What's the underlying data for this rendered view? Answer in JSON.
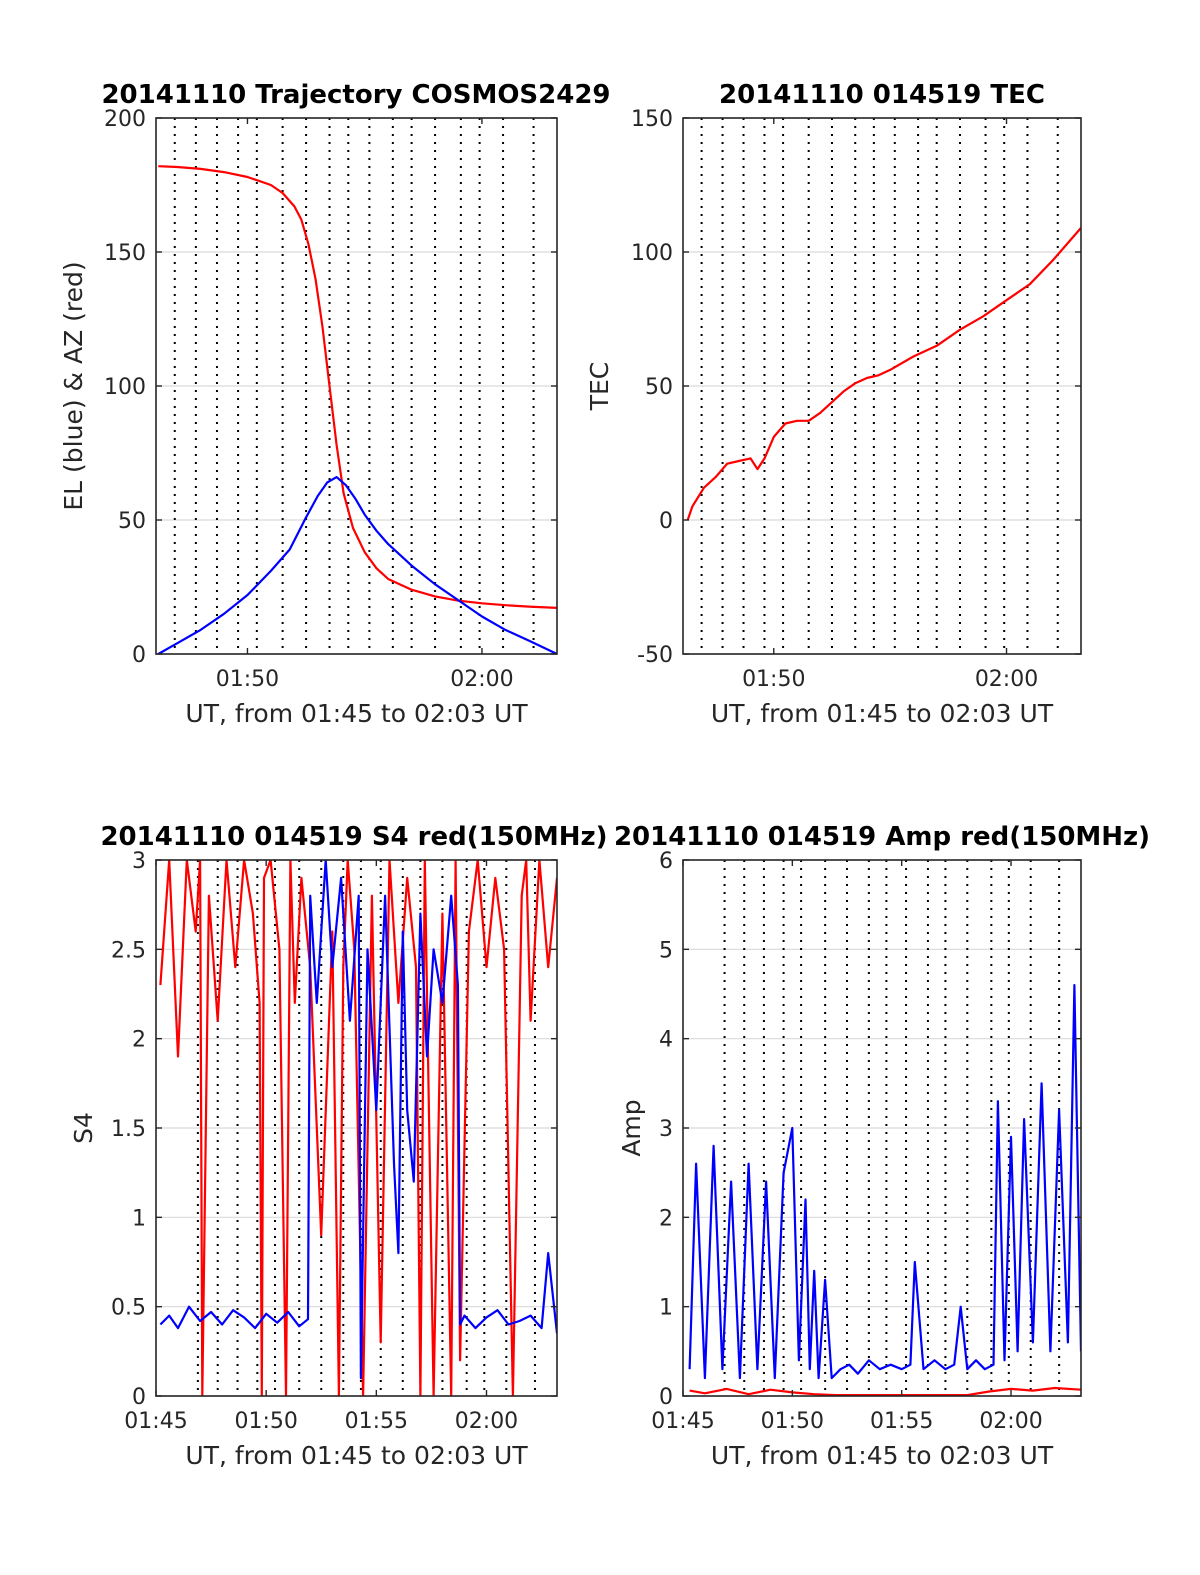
{
  "colors": {
    "red": "#ff0000",
    "blue": "#0000ff",
    "grid": "#d9d9d9",
    "vline": "#000000",
    "axis": "#262626"
  },
  "chart_data": [
    {
      "id": "trajectory",
      "type": "line",
      "title": "20141110 Trajectory COSMOS2429",
      "xlabel": "UT, from 01:45 to 02:03 UT",
      "ylabel": "EL (blue) & AZ (red)",
      "xlim_minutes": [
        106.1,
        123.2
      ],
      "ylim": [
        0,
        200
      ],
      "yticks": [
        0,
        50,
        100,
        150,
        200
      ],
      "ytick_labels": [
        "0",
        "50",
        "100",
        "150",
        "200"
      ],
      "xticks_minutes": [
        110,
        120
      ],
      "xtick_labels": [
        "01:50",
        "02:00"
      ],
      "grid": "horizontal",
      "series": [
        {
          "color": "red",
          "x": [
            106.2,
            107,
            108,
            109,
            110,
            111,
            111.5,
            112,
            112.3,
            112.6,
            112.9,
            113.2,
            113.5,
            113.8,
            114.1,
            114.5,
            115,
            115.5,
            116,
            117,
            118,
            119,
            120,
            121,
            122,
            123.2
          ],
          "y": [
            182,
            181.7,
            181,
            179.8,
            178,
            175,
            172,
            167,
            162,
            153,
            140,
            122,
            100,
            78,
            60,
            47,
            38,
            32,
            28,
            24,
            21.5,
            19.9,
            18.9,
            18.2,
            17.7,
            17.2
          ]
        },
        {
          "color": "blue",
          "x": [
            106.2,
            107,
            108,
            109,
            110,
            111,
            111.8,
            112.5,
            113,
            113.4,
            113.8,
            114.2,
            114.6,
            115,
            115.5,
            116,
            117,
            118,
            119,
            120,
            121,
            122,
            123.2
          ],
          "y": [
            0,
            4,
            9,
            15,
            22,
            31,
            39,
            51,
            59,
            64,
            66,
            63,
            58,
            52,
            46,
            41,
            33,
            26,
            20,
            14,
            9,
            5,
            0
          ]
        }
      ]
    },
    {
      "id": "tec",
      "type": "line",
      "title": "20141110 014519 TEC",
      "xlabel": "UT, from 01:45 to 02:03 UT",
      "ylabel": "TEC",
      "xlim_minutes": [
        106.1,
        123.2
      ],
      "ylim": [
        -50,
        150
      ],
      "yticks": [
        -50,
        0,
        50,
        100,
        150
      ],
      "ytick_labels": [
        "-50",
        "0",
        "50",
        "100",
        "150"
      ],
      "xticks_minutes": [
        110,
        120
      ],
      "xtick_labels": [
        "01:50",
        "02:00"
      ],
      "grid": "horizontal",
      "series": [
        {
          "color": "red",
          "x": [
            106.3,
            106.5,
            107,
            107.5,
            108,
            108.5,
            109,
            109.3,
            109.6,
            110,
            110.5,
            111,
            111.5,
            112,
            112.5,
            113,
            113.5,
            114,
            114.5,
            115,
            116,
            117,
            118,
            119,
            120,
            121,
            122,
            123.2
          ],
          "y": [
            0,
            5,
            12,
            16,
            21,
            22,
            23,
            19,
            23,
            31,
            36,
            37,
            37,
            40,
            44,
            48,
            51,
            53,
            54,
            56,
            61,
            65,
            71,
            76,
            82,
            88,
            97,
            109
          ]
        }
      ]
    },
    {
      "id": "s4",
      "type": "line",
      "title": "20141110 014519 S4 red(150MHz)",
      "xlabel": "UT, from 01:45 to 02:03 UT",
      "ylabel": "S4",
      "xlim_minutes": [
        105,
        123.2
      ],
      "ylim": [
        0,
        3
      ],
      "yticks": [
        0,
        0.5,
        1,
        1.5,
        2,
        2.5,
        3
      ],
      "ytick_labels": [
        "0",
        "0.5",
        "1",
        "1.5",
        "2",
        "2.5",
        "3"
      ],
      "xticks_minutes": [
        105,
        110,
        115,
        120
      ],
      "xtick_labels": [
        "01:45",
        "01:50",
        "01:55",
        "02:00"
      ],
      "grid": "horizontal",
      "series": [
        {
          "color": "red",
          "x": [
            105.2,
            105.6,
            106,
            106.4,
            106.8,
            107.0,
            107.1,
            107.4,
            107.8,
            108.2,
            108.6,
            109.0,
            109.4,
            109.7,
            109.8,
            109.9,
            110.2,
            110.6,
            110.9,
            111.1,
            111.3,
            111.6,
            112.0,
            112.5,
            113.0,
            113.3,
            113.5,
            113.7,
            114.0,
            114.4,
            114.8,
            115.2,
            115.6,
            116,
            116.4,
            116.8,
            117.0,
            117.2,
            117.6,
            118.0,
            118.4,
            118.6,
            118.8,
            119.2,
            119.6,
            120,
            120.4,
            120.8,
            121.2,
            121.6,
            121.8,
            122,
            122.4,
            122.8,
            123.2
          ],
          "y": [
            2.3,
            3,
            1.9,
            3,
            2.6,
            3,
            0,
            2.8,
            2.1,
            3,
            2.4,
            3,
            2.7,
            2.2,
            0,
            2.9,
            3,
            2.5,
            0,
            3,
            2.2,
            2.9,
            2.4,
            0.9,
            2.6,
            0,
            2.4,
            3,
            2.5,
            0,
            2.8,
            0.3,
            3,
            2.2,
            2.9,
            2.4,
            0,
            3,
            0,
            2.7,
            0,
            3,
            0.2,
            2.6,
            3,
            2.4,
            2.9,
            2.5,
            0,
            2.8,
            3,
            2.1,
            3,
            2.4,
            2.9
          ]
        },
        {
          "color": "blue",
          "x": [
            105.2,
            105.6,
            106,
            106.5,
            107,
            107.5,
            108,
            108.5,
            109,
            109.5,
            110,
            110.5,
            111,
            111.5,
            111.9,
            112.0,
            112.3,
            112.7,
            113,
            113.4,
            113.8,
            114.2,
            114.3,
            114.6,
            115,
            115.4,
            115.8,
            116.0,
            116.2,
            116.4,
            116.7,
            117,
            117.3,
            117.6,
            118,
            118.4,
            118.7,
            118.8,
            119,
            119.5,
            120,
            120.5,
            121,
            121.5,
            122,
            122.5,
            122.8,
            123.2
          ],
          "y": [
            0.4,
            0.45,
            0.38,
            0.5,
            0.42,
            0.47,
            0.4,
            0.48,
            0.44,
            0.38,
            0.46,
            0.41,
            0.47,
            0.39,
            0.43,
            2.8,
            2.2,
            3,
            2.4,
            2.9,
            2.1,
            2.8,
            0.1,
            2.5,
            1.6,
            2.8,
            1.3,
            0.8,
            2.6,
            1.6,
            1.2,
            2.7,
            1.9,
            2.5,
            2.2,
            2.8,
            2.3,
            0.4,
            0.45,
            0.38,
            0.44,
            0.48,
            0.4,
            0.42,
            0.45,
            0.38,
            0.8,
            0.35
          ]
        }
      ]
    },
    {
      "id": "amp",
      "type": "line",
      "title": "20141110 014519 Amp red(150MHz)",
      "xlabel": "UT, from 01:45 to 02:03 UT",
      "ylabel": "Amp",
      "xlim_minutes": [
        105,
        123.2
      ],
      "ylim": [
        0,
        6
      ],
      "yticks": [
        0,
        1,
        2,
        3,
        4,
        5,
        6
      ],
      "ytick_labels": [
        "0",
        "1",
        "2",
        "3",
        "4",
        "5",
        "6"
      ],
      "xticks_minutes": [
        105,
        110,
        115,
        120
      ],
      "xtick_labels": [
        "01:45",
        "01:50",
        "01:55",
        "02:00"
      ],
      "grid": "horizontal",
      "series": [
        {
          "color": "blue",
          "x": [
            105.3,
            105.6,
            106,
            106.4,
            106.8,
            107.2,
            107.6,
            108,
            108.4,
            108.8,
            109.2,
            109.6,
            110.0,
            110.3,
            110.6,
            110.8,
            111.0,
            111.2,
            111.5,
            111.8,
            112.2,
            112.6,
            113,
            113.5,
            114,
            114.5,
            115,
            115.4,
            115.6,
            116,
            116.5,
            117,
            117.4,
            117.7,
            118,
            118.4,
            118.8,
            119.2,
            119.4,
            119.7,
            120,
            120.3,
            120.6,
            121,
            121.4,
            121.8,
            122.2,
            122.6,
            122.9,
            123.2
          ],
          "y": [
            0.3,
            2.6,
            0.2,
            2.8,
            0.3,
            2.4,
            0.2,
            2.6,
            0.3,
            2.4,
            0.2,
            2.5,
            3.0,
            0.4,
            2.2,
            0.3,
            1.4,
            0.2,
            1.3,
            0.2,
            0.3,
            0.35,
            0.25,
            0.4,
            0.3,
            0.35,
            0.3,
            0.35,
            1.5,
            0.3,
            0.4,
            0.3,
            0.35,
            1.0,
            0.3,
            0.4,
            0.3,
            0.35,
            3.3,
            0.4,
            2.9,
            0.5,
            3.1,
            0.6,
            3.5,
            0.5,
            3.2,
            0.6,
            4.6,
            0.5
          ]
        },
        {
          "color": "red",
          "x": [
            105.3,
            106,
            107,
            108,
            109,
            110,
            111,
            112,
            113,
            114,
            115,
            116,
            117,
            118,
            119,
            120,
            121,
            122,
            123.2
          ],
          "y": [
            0.06,
            0.03,
            0.08,
            0.02,
            0.07,
            0.04,
            0.02,
            0.01,
            0.01,
            0.01,
            0.01,
            0.01,
            0.01,
            0.01,
            0.05,
            0.08,
            0.06,
            0.09,
            0.07
          ]
        }
      ]
    }
  ]
}
